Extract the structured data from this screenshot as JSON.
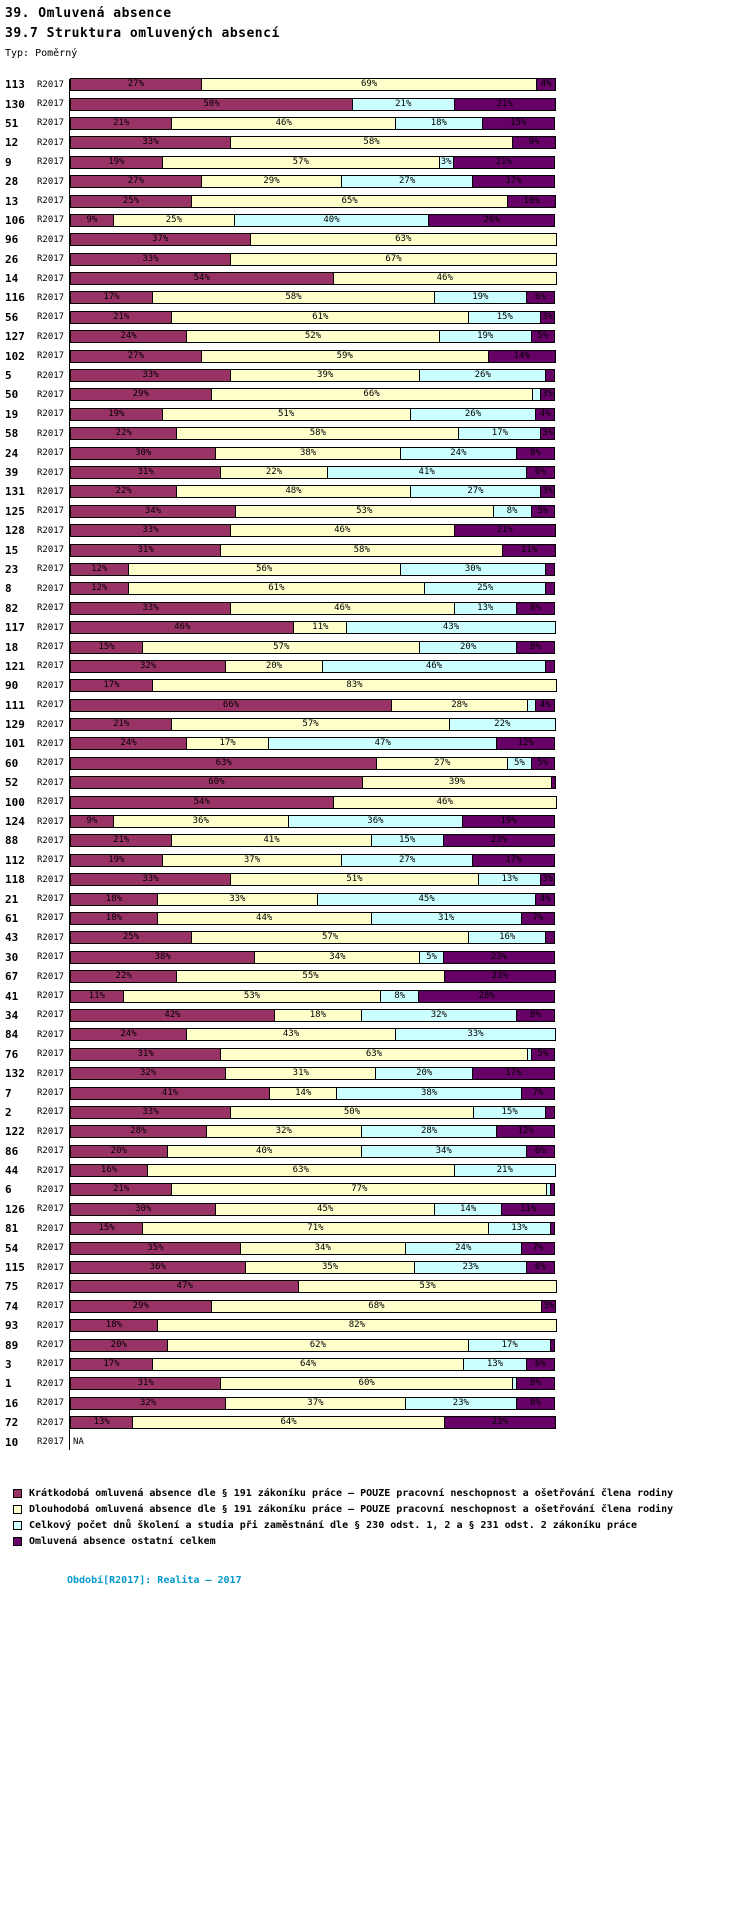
{
  "header": {
    "title": "39. Omluvená absence",
    "subtitle": "39.7 Struktura omluvených absencí",
    "type_label": "Typ: Poměrný"
  },
  "footer": {
    "period_note": "Období[R2017]: Realita – 2017"
  },
  "colors": {
    "footer_text": "#0099CC",
    "axis": "#000000"
  },
  "chart_data": {
    "type": "bar",
    "orientation": "horizontal",
    "stacked": true,
    "unit": "%",
    "xlim": [
      0,
      100
    ],
    "period": "R2017",
    "na_text": "NA",
    "series": [
      {
        "key": "short_term",
        "color": "#993366",
        "name": "Krátkodobá omluvená absence dle § 191 zákoníku práce – POUZE pracovní neschopnost a ošetřování člena rodiny"
      },
      {
        "key": "long_term",
        "color": "#FFFFCC",
        "name": "Dlouhodobá omluvená absence dle § 191 zákoníku práce – POUZE pracovní neschopnost a ošetřování člena rodiny"
      },
      {
        "key": "training",
        "color": "#CCFFFF",
        "name": "Celkový počet dnů školení a studia při zaměstnání dle § 230 odst. 1, 2 a § 231 odst. 2 zákoníku práce"
      },
      {
        "key": "other",
        "color": "#660066",
        "name": "Omluvená absence ostatní celkem"
      }
    ],
    "rows": [
      {
        "id": "113",
        "values": [
          27,
          69,
          0,
          4
        ]
      },
      {
        "id": "130",
        "values": [
          58,
          0,
          21,
          21
        ]
      },
      {
        "id": "51",
        "values": [
          21,
          46,
          18,
          15
        ]
      },
      {
        "id": "12",
        "values": [
          33,
          58,
          0,
          9
        ]
      },
      {
        "id": "9",
        "values": [
          19,
          57,
          3,
          21
        ]
      },
      {
        "id": "28",
        "values": [
          27,
          29,
          27,
          17
        ]
      },
      {
        "id": "13",
        "values": [
          25,
          65,
          0,
          10
        ]
      },
      {
        "id": "106",
        "values": [
          9,
          25,
          40,
          26
        ]
      },
      {
        "id": "96",
        "values": [
          37,
          63,
          0,
          0
        ]
      },
      {
        "id": "26",
        "values": [
          33,
          67,
          0,
          0
        ]
      },
      {
        "id": "14",
        "values": [
          54,
          46,
          0,
          0
        ]
      },
      {
        "id": "116",
        "values": [
          17,
          58,
          19,
          6
        ]
      },
      {
        "id": "56",
        "values": [
          21,
          61,
          15,
          3
        ]
      },
      {
        "id": "127",
        "values": [
          24,
          52,
          19,
          5
        ]
      },
      {
        "id": "102",
        "values": [
          27,
          59,
          0,
          14
        ]
      },
      {
        "id": "5",
        "values": [
          33,
          39,
          26,
          2
        ]
      },
      {
        "id": "50",
        "values": [
          29,
          66,
          2,
          3
        ]
      },
      {
        "id": "19",
        "values": [
          19,
          51,
          26,
          4
        ]
      },
      {
        "id": "58",
        "values": [
          22,
          58,
          17,
          3
        ]
      },
      {
        "id": "24",
        "values": [
          30,
          38,
          24,
          8
        ]
      },
      {
        "id": "39",
        "values": [
          31,
          22,
          41,
          6
        ]
      },
      {
        "id": "131",
        "values": [
          22,
          48,
          27,
          3
        ]
      },
      {
        "id": "125",
        "values": [
          34,
          53,
          8,
          5
        ]
      },
      {
        "id": "128",
        "values": [
          33,
          46,
          0,
          21
        ]
      },
      {
        "id": "15",
        "values": [
          31,
          58,
          0,
          11
        ]
      },
      {
        "id": "23",
        "values": [
          12,
          56,
          30,
          2
        ]
      },
      {
        "id": "8",
        "values": [
          12,
          61,
          25,
          2
        ]
      },
      {
        "id": "82",
        "values": [
          33,
          46,
          13,
          8
        ]
      },
      {
        "id": "117",
        "values": [
          46,
          11,
          43,
          0
        ]
      },
      {
        "id": "18",
        "values": [
          15,
          57,
          20,
          8
        ]
      },
      {
        "id": "121",
        "values": [
          32,
          20,
          46,
          2
        ]
      },
      {
        "id": "90",
        "values": [
          17,
          83,
          0,
          0
        ]
      },
      {
        "id": "111",
        "values": [
          66,
          28,
          2,
          4
        ]
      },
      {
        "id": "129",
        "values": [
          21,
          57,
          22,
          0
        ]
      },
      {
        "id": "101",
        "values": [
          24,
          17,
          47,
          12
        ]
      },
      {
        "id": "60",
        "values": [
          63,
          27,
          5,
          5
        ]
      },
      {
        "id": "52",
        "values": [
          60,
          39,
          0,
          1
        ]
      },
      {
        "id": "100",
        "values": [
          54,
          46,
          0,
          0
        ]
      },
      {
        "id": "124",
        "values": [
          9,
          36,
          36,
          19
        ]
      },
      {
        "id": "88",
        "values": [
          21,
          41,
          15,
          23
        ]
      },
      {
        "id": "112",
        "values": [
          19,
          37,
          27,
          17
        ]
      },
      {
        "id": "118",
        "values": [
          33,
          51,
          13,
          3
        ]
      },
      {
        "id": "21",
        "values": [
          18,
          33,
          45,
          4
        ]
      },
      {
        "id": "61",
        "values": [
          18,
          44,
          31,
          7
        ]
      },
      {
        "id": "43",
        "values": [
          25,
          57,
          16,
          2
        ]
      },
      {
        "id": "30",
        "values": [
          38,
          34,
          5,
          23
        ]
      },
      {
        "id": "67",
        "values": [
          22,
          55,
          0,
          23
        ]
      },
      {
        "id": "41",
        "values": [
          11,
          53,
          8,
          28
        ]
      },
      {
        "id": "34",
        "values": [
          42,
          18,
          32,
          8
        ]
      },
      {
        "id": "84",
        "values": [
          24,
          43,
          33,
          0
        ]
      },
      {
        "id": "76",
        "values": [
          31,
          63,
          1,
          5
        ]
      },
      {
        "id": "132",
        "values": [
          32,
          31,
          20,
          17
        ]
      },
      {
        "id": "7",
        "values": [
          41,
          14,
          38,
          7
        ]
      },
      {
        "id": "2",
        "values": [
          33,
          50,
          15,
          2
        ]
      },
      {
        "id": "122",
        "values": [
          28,
          32,
          28,
          12
        ]
      },
      {
        "id": "86",
        "values": [
          20,
          40,
          34,
          6
        ]
      },
      {
        "id": "44",
        "values": [
          16,
          63,
          21,
          0
        ]
      },
      {
        "id": "6",
        "values": [
          21,
          77,
          1,
          1
        ]
      },
      {
        "id": "126",
        "values": [
          30,
          45,
          14,
          11
        ]
      },
      {
        "id": "81",
        "values": [
          15,
          71,
          13,
          1
        ]
      },
      {
        "id": "54",
        "values": [
          35,
          34,
          24,
          7
        ]
      },
      {
        "id": "115",
        "values": [
          36,
          35,
          23,
          6
        ]
      },
      {
        "id": "75",
        "values": [
          47,
          53,
          0,
          0
        ]
      },
      {
        "id": "74",
        "values": [
          29,
          68,
          0,
          3
        ]
      },
      {
        "id": "93",
        "values": [
          18,
          82,
          0,
          0
        ]
      },
      {
        "id": "89",
        "values": [
          20,
          62,
          17,
          1
        ]
      },
      {
        "id": "3",
        "values": [
          17,
          64,
          13,
          6
        ]
      },
      {
        "id": "1",
        "values": [
          31,
          60,
          1,
          8
        ]
      },
      {
        "id": "16",
        "values": [
          32,
          37,
          23,
          8
        ]
      },
      {
        "id": "72",
        "values": [
          13,
          64,
          0,
          23
        ]
      },
      {
        "id": "10",
        "values": null
      }
    ]
  }
}
